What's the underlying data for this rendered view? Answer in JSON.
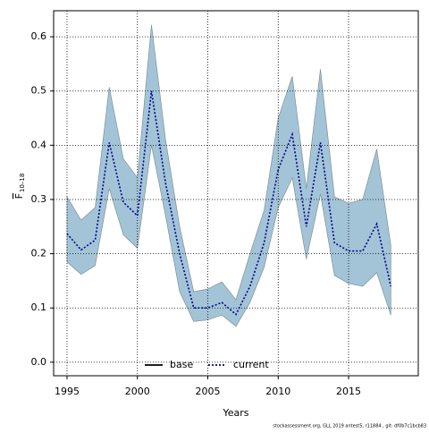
{
  "chart_data": {
    "type": "line",
    "xlabel": "Years",
    "ylabel": {
      "main": "F",
      "sub": "10–18"
    },
    "footnote": "stockassessment.org, GLL 2019 antest5, r11884 , git: df0b7c1bcb83",
    "x": [
      1995,
      1996,
      1997,
      1998,
      1999,
      2000,
      2001,
      2002,
      2003,
      2004,
      2005,
      2006,
      2007,
      2008,
      2009,
      2010,
      2011,
      2012,
      2013,
      2014,
      2015,
      2016,
      2017,
      2018
    ],
    "series": [
      {
        "name": "current",
        "color": "#00008b",
        "values": [
          0.237,
          0.207,
          0.225,
          0.405,
          0.295,
          0.27,
          0.5,
          0.33,
          0.2,
          0.1,
          0.1,
          0.11,
          0.088,
          0.14,
          0.22,
          0.355,
          0.42,
          0.25,
          0.405,
          0.22,
          0.205,
          0.205,
          0.255,
          0.14
        ]
      }
    ],
    "upper": [
      0.305,
      0.262,
      0.285,
      0.507,
      0.375,
      0.34,
      0.622,
      0.41,
      0.25,
      0.13,
      0.135,
      0.148,
      0.115,
      0.2,
      0.28,
      0.45,
      0.527,
      0.32,
      0.54,
      0.305,
      0.293,
      0.3,
      0.393,
      0.215
    ],
    "lower": [
      0.185,
      0.162,
      0.178,
      0.32,
      0.235,
      0.21,
      0.4,
      0.27,
      0.13,
      0.075,
      0.078,
      0.087,
      0.066,
      0.11,
      0.175,
      0.285,
      0.34,
      0.19,
      0.31,
      0.16,
      0.145,
      0.14,
      0.165,
      0.087
    ],
    "band_color": "#a3c4d6",
    "legend": [
      {
        "name": "base",
        "color": "#000000",
        "style": "solid"
      },
      {
        "name": "current",
        "color": "#00008b",
        "style": "dotted"
      }
    ],
    "xlim": [
      1994.05,
      2019.95
    ],
    "ylim": [
      -0.025,
      0.648
    ],
    "xticks": [
      1995,
      2000,
      2005,
      2010,
      2015
    ],
    "yticks": [
      {
        "value": 0,
        "label": "0.0"
      },
      0.1,
      0.2,
      0.3,
      0.4,
      0.5,
      0.6
    ],
    "grid": true
  }
}
